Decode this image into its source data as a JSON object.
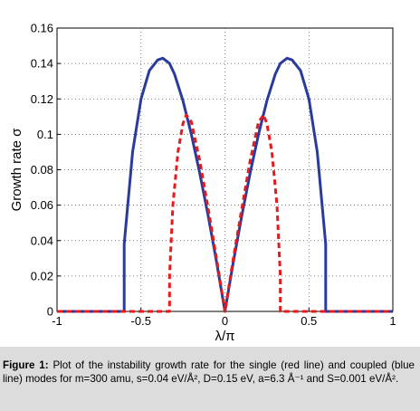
{
  "chart_data": {
    "type": "line",
    "xlabel": "λ/π",
    "ylabel": "Growth rate σ",
    "xlim": [
      -1,
      1
    ],
    "ylim": [
      0,
      0.16
    ],
    "x_ticks": [
      "-1",
      "-0.5",
      "0",
      "0.5",
      "1"
    ],
    "y_ticks": [
      "0",
      "0.02",
      "0.04",
      "0.06",
      "0.08",
      "0.1",
      "0.12",
      "0.14",
      "0.16"
    ],
    "grid": true,
    "series": [
      {
        "color": "#2a3b9c",
        "style": "solid",
        "x": [
          -1,
          -0.6,
          -0.6,
          -0.55,
          -0.5,
          -0.45,
          -0.4,
          -0.37,
          -0.33,
          -0.3,
          -0.25,
          -0.2,
          -0.15,
          -0.1,
          -0.05,
          0,
          0.05,
          0.1,
          0.15,
          0.2,
          0.25,
          0.3,
          0.33,
          0.37,
          0.4,
          0.45,
          0.5,
          0.55,
          0.6,
          0.6,
          1
        ],
        "y": [
          0,
          0,
          0.038,
          0.09,
          0.12,
          0.136,
          0.142,
          0.143,
          0.14,
          0.134,
          0.119,
          0.1,
          0.078,
          0.054,
          0.028,
          0,
          0.028,
          0.054,
          0.078,
          0.1,
          0.119,
          0.134,
          0.14,
          0.143,
          0.142,
          0.136,
          0.12,
          0.09,
          0.038,
          0,
          0
        ]
      },
      {
        "color": "#e41a1c",
        "style": "dashed",
        "x": [
          -1,
          -0.33,
          -0.33,
          -0.31,
          -0.28,
          -0.25,
          -0.23,
          -0.2,
          -0.15,
          -0.1,
          -0.05,
          0,
          0.05,
          0.1,
          0.15,
          0.2,
          0.23,
          0.25,
          0.28,
          0.31,
          0.33,
          0.33,
          1
        ],
        "y": [
          0,
          0,
          0.02,
          0.06,
          0.09,
          0.106,
          0.111,
          0.107,
          0.085,
          0.058,
          0.03,
          0,
          0.03,
          0.058,
          0.085,
          0.107,
          0.111,
          0.106,
          0.09,
          0.06,
          0.02,
          0,
          0
        ]
      }
    ]
  },
  "caption": {
    "label": "Figure 1:",
    "text": "Plot of the instability growth rate for the single (red line) and coupled (blue line) modes for m=300 amu, s=0.04 eV/Å², D=0.15 eV, a=6.3 Å⁻¹ and S=0.001 eV/Å²."
  }
}
